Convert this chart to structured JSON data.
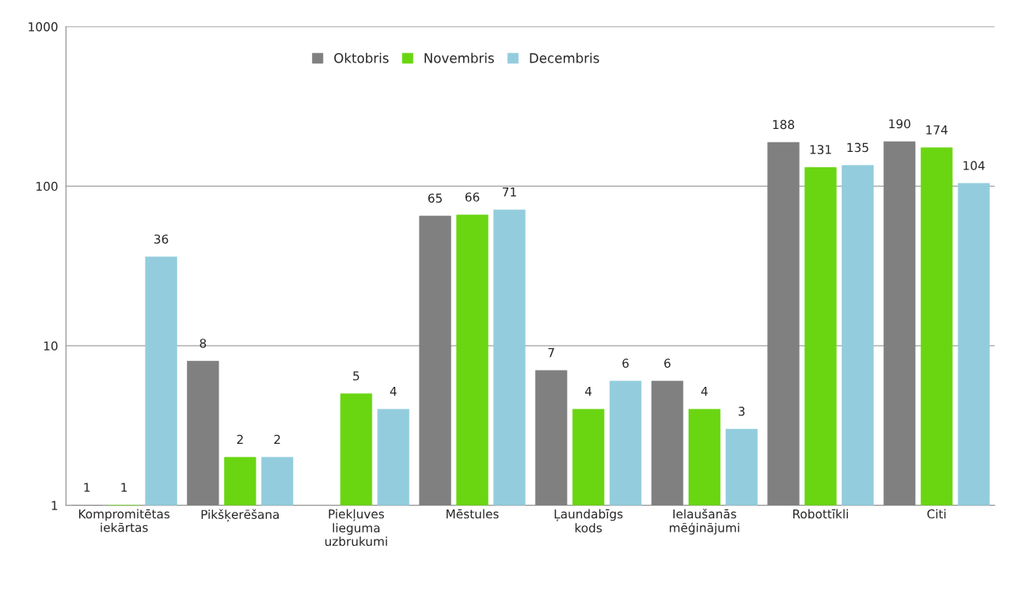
{
  "chart_data": {
    "type": "bar",
    "log": true,
    "ylim": [
      1,
      1000
    ],
    "yticks": [
      1,
      10,
      100,
      1000
    ],
    "grid": "y",
    "legend": "top",
    "data_labels": true,
    "categories": [
      "Kompromitētas\niekārtas",
      "Pikšķerēšana",
      "Piekļuves\nlieguma\nuzbrukumi",
      "Mēstules",
      "Ļaundabīgs\nkods",
      "Ielaušanās\nmēģinājumi",
      "Robottīkli",
      "Citi"
    ],
    "series": [
      {
        "name": "Oktobris",
        "color": "#808080",
        "values": [
          1,
          8,
          null,
          65,
          7,
          6,
          188,
          190
        ]
      },
      {
        "name": "Novembris",
        "color": "#6ad612",
        "values": [
          1,
          2,
          5,
          66,
          4,
          4,
          131,
          174
        ]
      },
      {
        "name": "Decembris",
        "color": "#93cddd",
        "values": [
          36,
          2,
          4,
          71,
          6,
          3,
          135,
          104
        ]
      }
    ]
  }
}
